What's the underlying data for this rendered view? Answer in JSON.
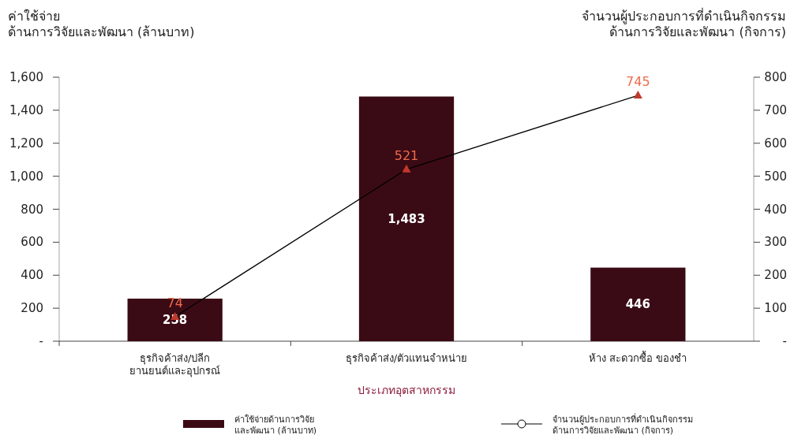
{
  "chart_data": {
    "type": "bar",
    "ylabel": "ค่าใช้จ่าย\nด้านการวิจัยและพัฒนา (ล้านบาท)",
    "y2label": "จำนวนผู้ประกอบการที่ดำเนินกิจกรรม\nด้านการวิจัยและพัฒนา (กิจการ)",
    "xlabel": "ประเภทอุตสาหกรรม",
    "categories": [
      "ธุรกิจค้าส่ง/ปลีก\nยานยนต์และอุปกรณ์",
      "ธุรกิจค้าส่ง/ตัวแทนจำหน่าย",
      "ห้าง สะดวกซื้อ ของชำ"
    ],
    "series": [
      {
        "name": "ค่าใช้จ่ายด้านการวิจัย\nและพัฒนา (ล้านบาท)",
        "color": "#3b0b15",
        "values": [
          258,
          1483,
          446
        ],
        "value_labels": [
          "258",
          "1,483",
          "446"
        ]
      },
      {
        "name": "จำนวนผู้ประกอบการที่ดำเนินกิจกรรม\nด้านการวิจัยและพัฒนา (กิจการ)",
        "type": "line",
        "axis": "y2",
        "color": "#000000",
        "marker": "triangle",
        "values": [
          74,
          521,
          745
        ]
      }
    ],
    "ylim": [
      0,
      1600
    ],
    "yticks": [
      {
        "value": 0,
        "label": "-"
      },
      200,
      400,
      600,
      800,
      {
        "value": 1000,
        "label": "1,000"
      },
      {
        "value": 1200,
        "label": "1,200"
      },
      {
        "value": 1400,
        "label": "1,400"
      },
      {
        "value": 1600,
        "label": "1,600"
      }
    ],
    "y2lim": [
      0,
      800
    ],
    "y2ticks": [
      {
        "value": 0,
        "label": "-"
      },
      100,
      200,
      300,
      400,
      500,
      600,
      700,
      800
    ],
    "data_labels": true,
    "grid": false,
    "legend": "bottom"
  }
}
